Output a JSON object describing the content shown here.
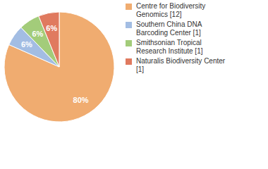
{
  "chart_data": {
    "type": "pie",
    "categories": [
      "Centre for Biodiversity Genomics [12]",
      "Southern China DNA Barcoding Center [1]",
      "Smithsonian Tropical Research Institute [1]",
      "Naturalis Biodiversity Center [1]"
    ],
    "values": [
      80,
      6,
      6,
      6
    ],
    "value_labels": [
      "80%",
      "6%",
      "6%",
      "6%"
    ],
    "data_labels": true,
    "colors": [
      "#f0ac70",
      "#a3bde3",
      "#a3cc7a",
      "#e07a5f"
    ],
    "legend": "upper right"
  }
}
